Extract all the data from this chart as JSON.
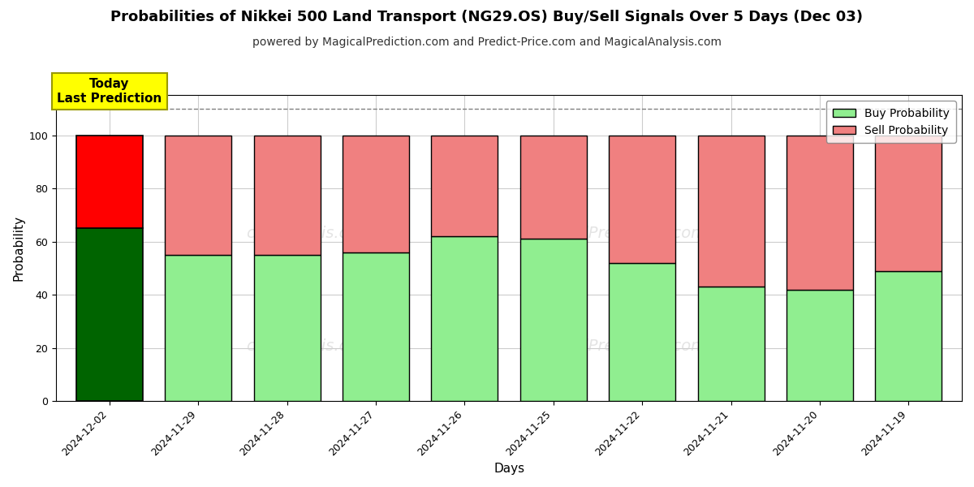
{
  "title": "Probabilities of Nikkei 500 Land Transport (NG29.OS) Buy/Sell Signals Over 5 Days (Dec 03)",
  "subtitle": "powered by MagicalPrediction.com and Predict-Price.com and MagicalAnalysis.com",
  "xlabel": "Days",
  "ylabel": "Probability",
  "categories": [
    "2024-12-02",
    "2024-11-29",
    "2024-11-28",
    "2024-11-27",
    "2024-11-26",
    "2024-11-25",
    "2024-11-22",
    "2024-11-21",
    "2024-11-20",
    "2024-11-19"
  ],
  "buy_values": [
    65,
    55,
    55,
    56,
    62,
    61,
    52,
    43,
    42,
    49
  ],
  "sell_values": [
    35,
    45,
    45,
    44,
    38,
    39,
    48,
    57,
    58,
    51
  ],
  "today_buy_color": "#006400",
  "today_sell_color": "#FF0000",
  "buy_color": "#90EE90",
  "sell_color": "#F08080",
  "bar_edge_color": "#000000",
  "today_annotation_text": "Today\nLast Prediction",
  "today_annotation_bg": "#FFFF00",
  "legend_buy_label": "Buy Probability",
  "legend_sell_label": "Sell Probability",
  "ylim": [
    0,
    115
  ],
  "dashed_line_y": 110,
  "title_fontsize": 13,
  "subtitle_fontsize": 10,
  "axis_label_fontsize": 11,
  "tick_fontsize": 9,
  "background_color": "#ffffff",
  "grid_color": "#cccccc"
}
